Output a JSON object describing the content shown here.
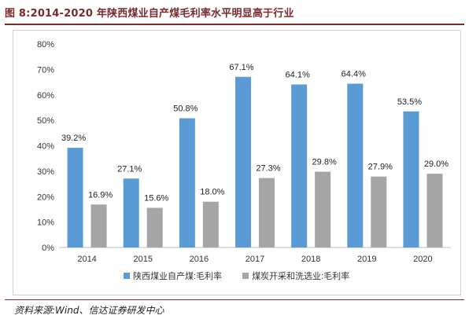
{
  "figure": {
    "title": "图 8:2014-2020 年陕西煤业自产煤毛利率水平明显高于行业",
    "source": "资料来源:Wind、信达证券研发中心"
  },
  "chart_data": {
    "type": "bar",
    "categories": [
      "2014",
      "2015",
      "2016",
      "2017",
      "2018",
      "2019",
      "2020"
    ],
    "series": [
      {
        "name": "陕西煤业自产煤:毛利率",
        "color": "#5b9bd5",
        "values": [
          39.2,
          27.1,
          50.8,
          67.1,
          64.1,
          64.4,
          53.5
        ],
        "labels": [
          "39.2%",
          "27.1%",
          "50.8%",
          "67.1%",
          "64.1%",
          "64.4%",
          "53.5%"
        ]
      },
      {
        "name": "煤炭开采和洗选业:毛利率",
        "color": "#a5a5a5",
        "values": [
          16.9,
          15.6,
          18.0,
          27.3,
          29.8,
          27.9,
          29.0
        ],
        "labels": [
          "16.9%",
          "15.6%",
          "18.0%",
          "27.3%",
          "29.8%",
          "27.9%",
          "29.0%"
        ]
      }
    ],
    "y_ticks": [
      "0%",
      "10%",
      "20%",
      "30%",
      "40%",
      "50%",
      "60%",
      "70%",
      "80%"
    ],
    "ylim": [
      0,
      80
    ],
    "grid": false,
    "legend_position": "bottom",
    "xlabel": "",
    "ylabel": ""
  }
}
